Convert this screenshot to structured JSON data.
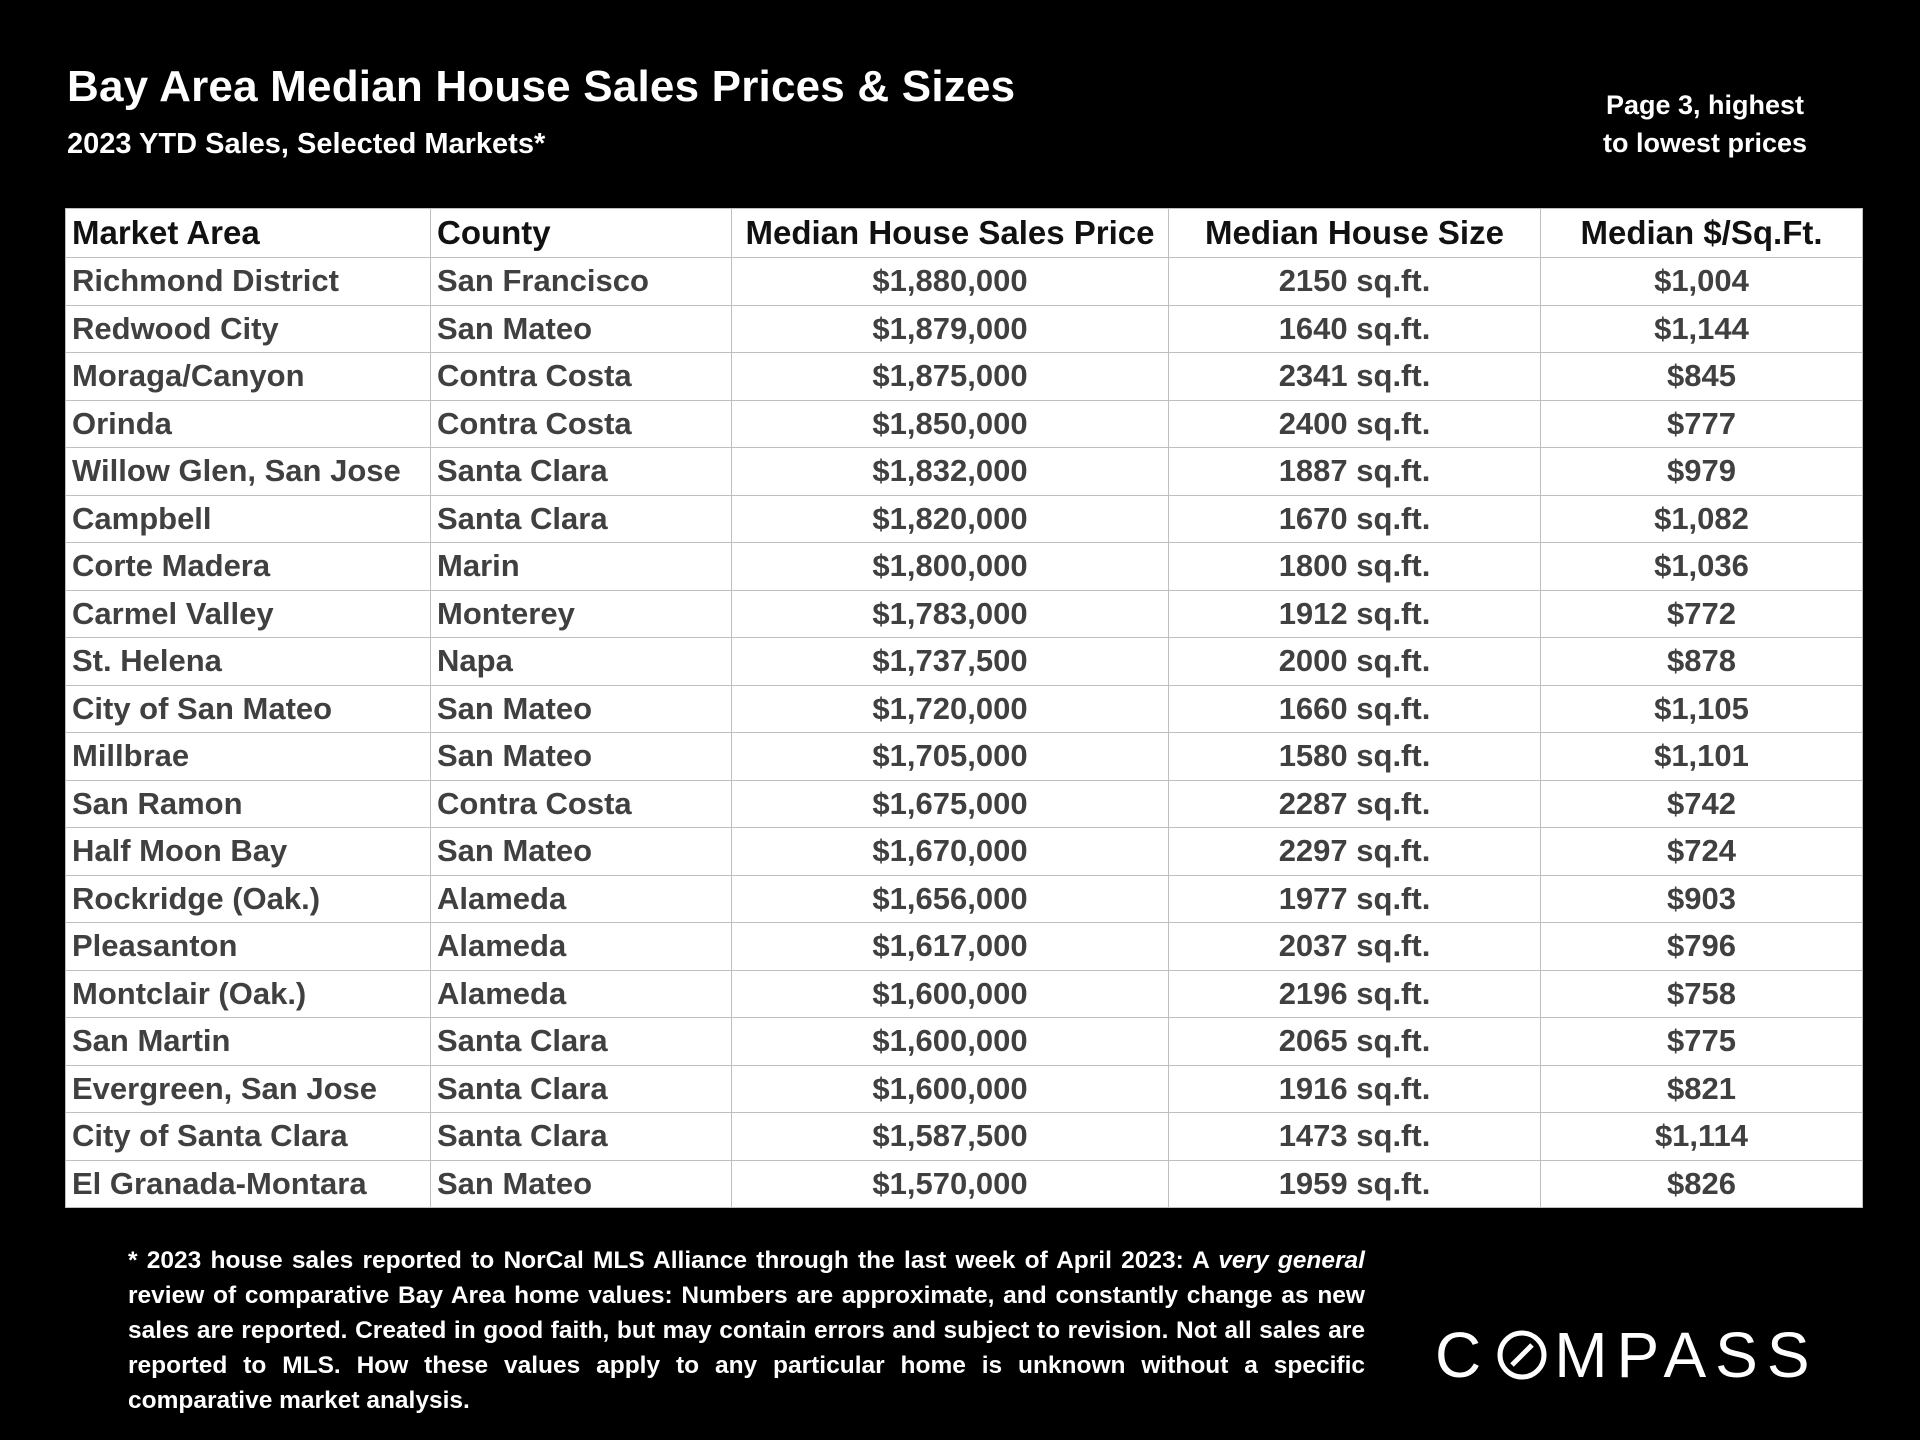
{
  "header": {
    "title": "Bay Area Median House Sales Prices & Sizes",
    "subtitle": "2023 YTD Sales, Selected Markets*",
    "page_note_line1": "Page 3, highest",
    "page_note_line2": "to lowest prices"
  },
  "table": {
    "columns": [
      "Market Area",
      "County",
      "Median House Sales Price",
      "Median House Size",
      "Median $/Sq.Ft."
    ],
    "rows": [
      [
        "Richmond District",
        "San Francisco",
        "$1,880,000",
        "2150 sq.ft.",
        "$1,004"
      ],
      [
        "Redwood City",
        "San Mateo",
        "$1,879,000",
        "1640 sq.ft.",
        "$1,144"
      ],
      [
        "Moraga/Canyon",
        "Contra Costa",
        "$1,875,000",
        "2341 sq.ft.",
        "$845"
      ],
      [
        "Orinda",
        "Contra Costa",
        "$1,850,000",
        "2400 sq.ft.",
        "$777"
      ],
      [
        "Willow Glen, San Jose",
        "Santa Clara",
        "$1,832,000",
        "1887 sq.ft.",
        "$979"
      ],
      [
        "Campbell",
        "Santa Clara",
        "$1,820,000",
        "1670 sq.ft.",
        "$1,082"
      ],
      [
        "Corte Madera",
        "Marin",
        "$1,800,000",
        "1800 sq.ft.",
        "$1,036"
      ],
      [
        "Carmel Valley",
        "Monterey",
        "$1,783,000",
        "1912 sq.ft.",
        "$772"
      ],
      [
        "St. Helena",
        "Napa",
        "$1,737,500",
        "2000 sq.ft.",
        "$878"
      ],
      [
        "City of San Mateo",
        "San Mateo",
        "$1,720,000",
        "1660 sq.ft.",
        "$1,105"
      ],
      [
        "Millbrae",
        "San Mateo",
        "$1,705,000",
        "1580 sq.ft.",
        "$1,101"
      ],
      [
        "San Ramon",
        "Contra Costa",
        "$1,675,000",
        "2287 sq.ft.",
        "$742"
      ],
      [
        "Half Moon Bay",
        "San Mateo",
        "$1,670,000",
        "2297 sq.ft.",
        "$724"
      ],
      [
        "Rockridge (Oak.)",
        "Alameda",
        "$1,656,000",
        "1977 sq.ft.",
        "$903"
      ],
      [
        "Pleasanton",
        "Alameda",
        "$1,617,000",
        "2037 sq.ft.",
        "$796"
      ],
      [
        "Montclair (Oak.)",
        "Alameda",
        "$1,600,000",
        "2196 sq.ft.",
        "$758"
      ],
      [
        "San Martin",
        "Santa Clara",
        "$1,600,000",
        "2065 sq.ft.",
        "$775"
      ],
      [
        "Evergreen, San Jose",
        "Santa Clara",
        "$1,600,000",
        "1916 sq.ft.",
        "$821"
      ],
      [
        "City of Santa Clara",
        "Santa Clara",
        "$1,587,500",
        "1473 sq.ft.",
        "$1,114"
      ],
      [
        "El Granada-Montara",
        "San Mateo",
        "$1,570,000",
        "1959 sq.ft.",
        "$826"
      ]
    ]
  },
  "footnote": {
    "part1": "* 2023 house sales reported to NorCal MLS Alliance through the last week of April 2023: A ",
    "emph1": "very general",
    "part2": " review of comparative Bay Area home values:  Numbers are approximate, and constantly change as new sales are reported. Created in good faith, but may contain errors and subject to revision. Not all sales are reported to MLS. How these values apply to any particular home is unknown without a specific comparative market analysis."
  },
  "logo": {
    "text_before": "C",
    "text_after": "MPASS",
    "full_text": "COMPASS"
  },
  "colors": {
    "background": "#000000",
    "table_background": "#ffffff",
    "cell_text": "#404040",
    "header_text": "#111111",
    "grid_line": "#bfbfbf"
  }
}
